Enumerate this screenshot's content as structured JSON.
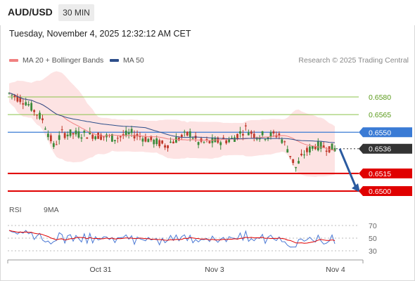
{
  "header": {
    "symbol": "AUD/USD",
    "timeframe": "30 MIN",
    "datetime": "Tuesday, November 4, 2025 12:32:12 AM CET"
  },
  "legend": {
    "ma20_label": "MA 20 + Bollinger Bands",
    "ma50_label": "MA 50",
    "copyright": "Research © 2025 Trading Central",
    "rsi_label": "RSI",
    "ma9_label": "9MA"
  },
  "colors": {
    "ma20": "#f08080",
    "ma50": "#2d4e8a",
    "bollinger_fill": "#fde0e0",
    "support_red": "#e00000",
    "resistance_green": "#8bc34a",
    "pivot_blue": "#3a7bd5",
    "current_dark": "#333333",
    "arrow": "#2a5aa0",
    "rsi": "#4a78d4",
    "rsi_ma": "#e00000",
    "candle_up": "#3a8a3a",
    "candle_down": "#c0392b"
  },
  "chart_data": {
    "type": "candlestick",
    "levels": [
      {
        "label": "0.6580",
        "value": 0.658,
        "kind": "resistance"
      },
      {
        "label": "0.6565",
        "value": 0.6565,
        "kind": "resistance"
      },
      {
        "label": "0.6550",
        "value": 0.655,
        "kind": "pivot"
      },
      {
        "label": "0.6536",
        "value": 0.6536,
        "kind": "current"
      },
      {
        "label": "0.6515",
        "value": 0.6515,
        "kind": "support"
      },
      {
        "label": "0.6500",
        "value": 0.65,
        "kind": "support"
      }
    ],
    "x_ticks": [
      "Oct 31",
      "Nov 3",
      "Nov 4"
    ],
    "rsi_ticks": [
      "70",
      "50",
      "30"
    ],
    "forecast": {
      "from": 0.6536,
      "to": 0.65,
      "direction": "down"
    }
  }
}
